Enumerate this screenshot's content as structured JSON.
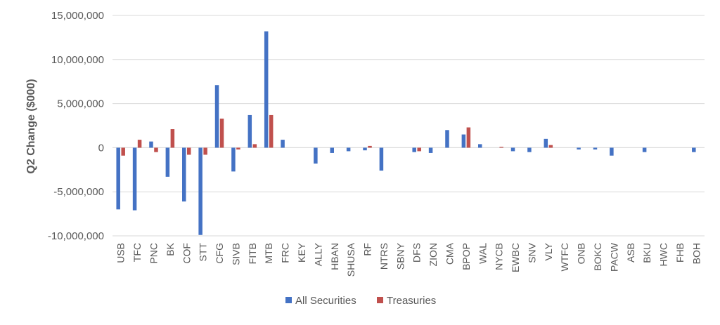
{
  "chart_data": {
    "type": "bar",
    "title": "",
    "xlabel": "",
    "ylabel": "Q2 Change ($000)",
    "ylim": [
      -10000000,
      15000000
    ],
    "yticks": [
      15000000,
      10000000,
      5000000,
      0,
      -5000000,
      -10000000
    ],
    "ytick_labels": [
      "15,000,000",
      "10,000,000",
      "5,000,000",
      "0",
      "-5,000,000",
      "-10,000,000"
    ],
    "grid": true,
    "legend_position": "bottom",
    "categories": [
      "USB",
      "TFC",
      "PNC",
      "BK",
      "COF",
      "STT",
      "CFG",
      "SIVB",
      "FITB",
      "MTB",
      "FRC",
      "KEY",
      "ALLY",
      "HBAN",
      "SHUSA",
      "RF",
      "NTRS",
      "SBNY",
      "DFS",
      "ZION",
      "CMA",
      "BPOP",
      "WAL",
      "NYCB",
      "EWBC",
      "SNV",
      "VLY",
      "WTFC",
      "ONB",
      "BOKC",
      "PACW",
      "ASB",
      "BKU",
      "HWC",
      "FHB",
      "BOH"
    ],
    "series": [
      {
        "name": "All Securities",
        "color": "#4472C4",
        "values": [
          -7000000,
          -7100000,
          700000,
          -3300000,
          -6100000,
          -9900000,
          7100000,
          -2700000,
          3700000,
          13200000,
          900000,
          0,
          -1800000,
          -600000,
          -400000,
          -300000,
          -2600000,
          0,
          -500000,
          -600000,
          2000000,
          1500000,
          400000,
          0,
          -400000,
          -500000,
          1000000,
          0,
          -200000,
          -200000,
          -900000,
          0,
          -500000,
          0,
          0,
          -500000
        ]
      },
      {
        "name": "Treasuries",
        "color": "#C0504D",
        "values": [
          -900000,
          900000,
          -500000,
          2100000,
          -800000,
          -800000,
          3300000,
          -200000,
          400000,
          3700000,
          0,
          0,
          0,
          0,
          0,
          200000,
          0,
          0,
          -400000,
          0,
          0,
          2300000,
          0,
          100000,
          0,
          0,
          300000,
          0,
          0,
          0,
          0,
          0,
          0,
          0,
          0,
          0
        ]
      }
    ]
  }
}
